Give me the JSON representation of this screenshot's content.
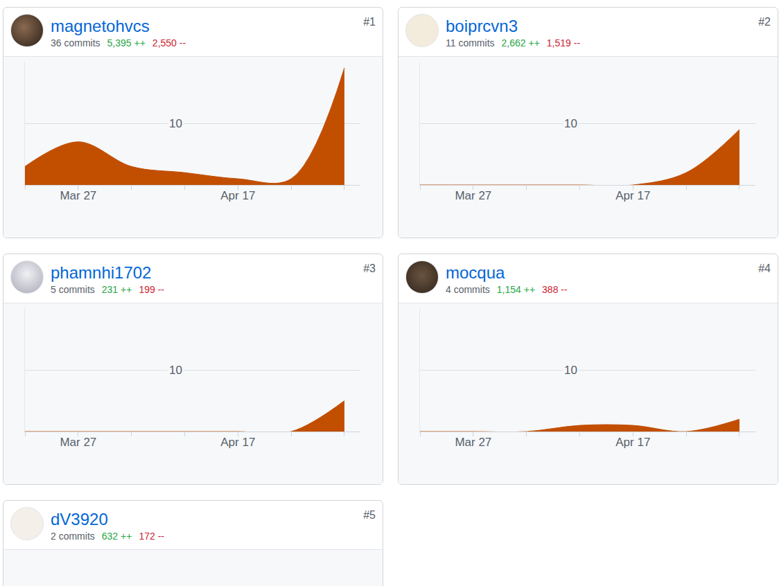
{
  "chart_data": [
    {
      "type": "area",
      "rank": "#1",
      "title": "magnetohvcs",
      "subtitle": "36 commits",
      "additions": "5,395 ++",
      "deletions": "2,550 --",
      "categories": [
        null,
        "Mar 27",
        null,
        null,
        "Apr 17",
        null,
        null
      ],
      "values": [
        3,
        7,
        3,
        2,
        1,
        1,
        19
      ],
      "color": "#c24e00",
      "ylim": [
        0,
        20
      ],
      "yticks": [
        10
      ],
      "grid": true
    },
    {
      "type": "area",
      "rank": "#2",
      "title": "boiprcvn3",
      "subtitle": "11 commits",
      "additions": "2,662 ++",
      "deletions": "1,519 --",
      "categories": [
        null,
        "Mar 27",
        null,
        null,
        "Apr 17",
        null,
        null
      ],
      "values": [
        0,
        0,
        0,
        0,
        0,
        2,
        9
      ],
      "color": "#c24e00",
      "ylim": [
        0,
        20
      ],
      "yticks": [
        10
      ],
      "grid": true
    },
    {
      "type": "area",
      "rank": "#3",
      "title": "phamnhi1702",
      "subtitle": "5 commits",
      "additions": "231 ++",
      "deletions": "199 --",
      "categories": [
        null,
        "Mar 27",
        null,
        null,
        "Apr 17",
        null,
        null
      ],
      "values": [
        0,
        0,
        0,
        0,
        0,
        0,
        5
      ],
      "color": "#c24e00",
      "ylim": [
        0,
        20
      ],
      "yticks": [
        10
      ],
      "grid": true
    },
    {
      "type": "area",
      "rank": "#4",
      "title": "mocqua",
      "subtitle": "4 commits",
      "additions": "1,154 ++",
      "deletions": "388 --",
      "categories": [
        null,
        "Mar 27",
        null,
        null,
        "Apr 17",
        null,
        null
      ],
      "values": [
        0,
        0,
        0,
        1,
        1,
        0,
        2
      ],
      "color": "#c24e00",
      "ylim": [
        0,
        20
      ],
      "yticks": [
        10
      ],
      "grid": true
    },
    {
      "type": "area",
      "rank": "#5",
      "title": "dV3920",
      "subtitle": "2 commits",
      "additions": "632 ++",
      "deletions": "172 --"
    }
  ]
}
